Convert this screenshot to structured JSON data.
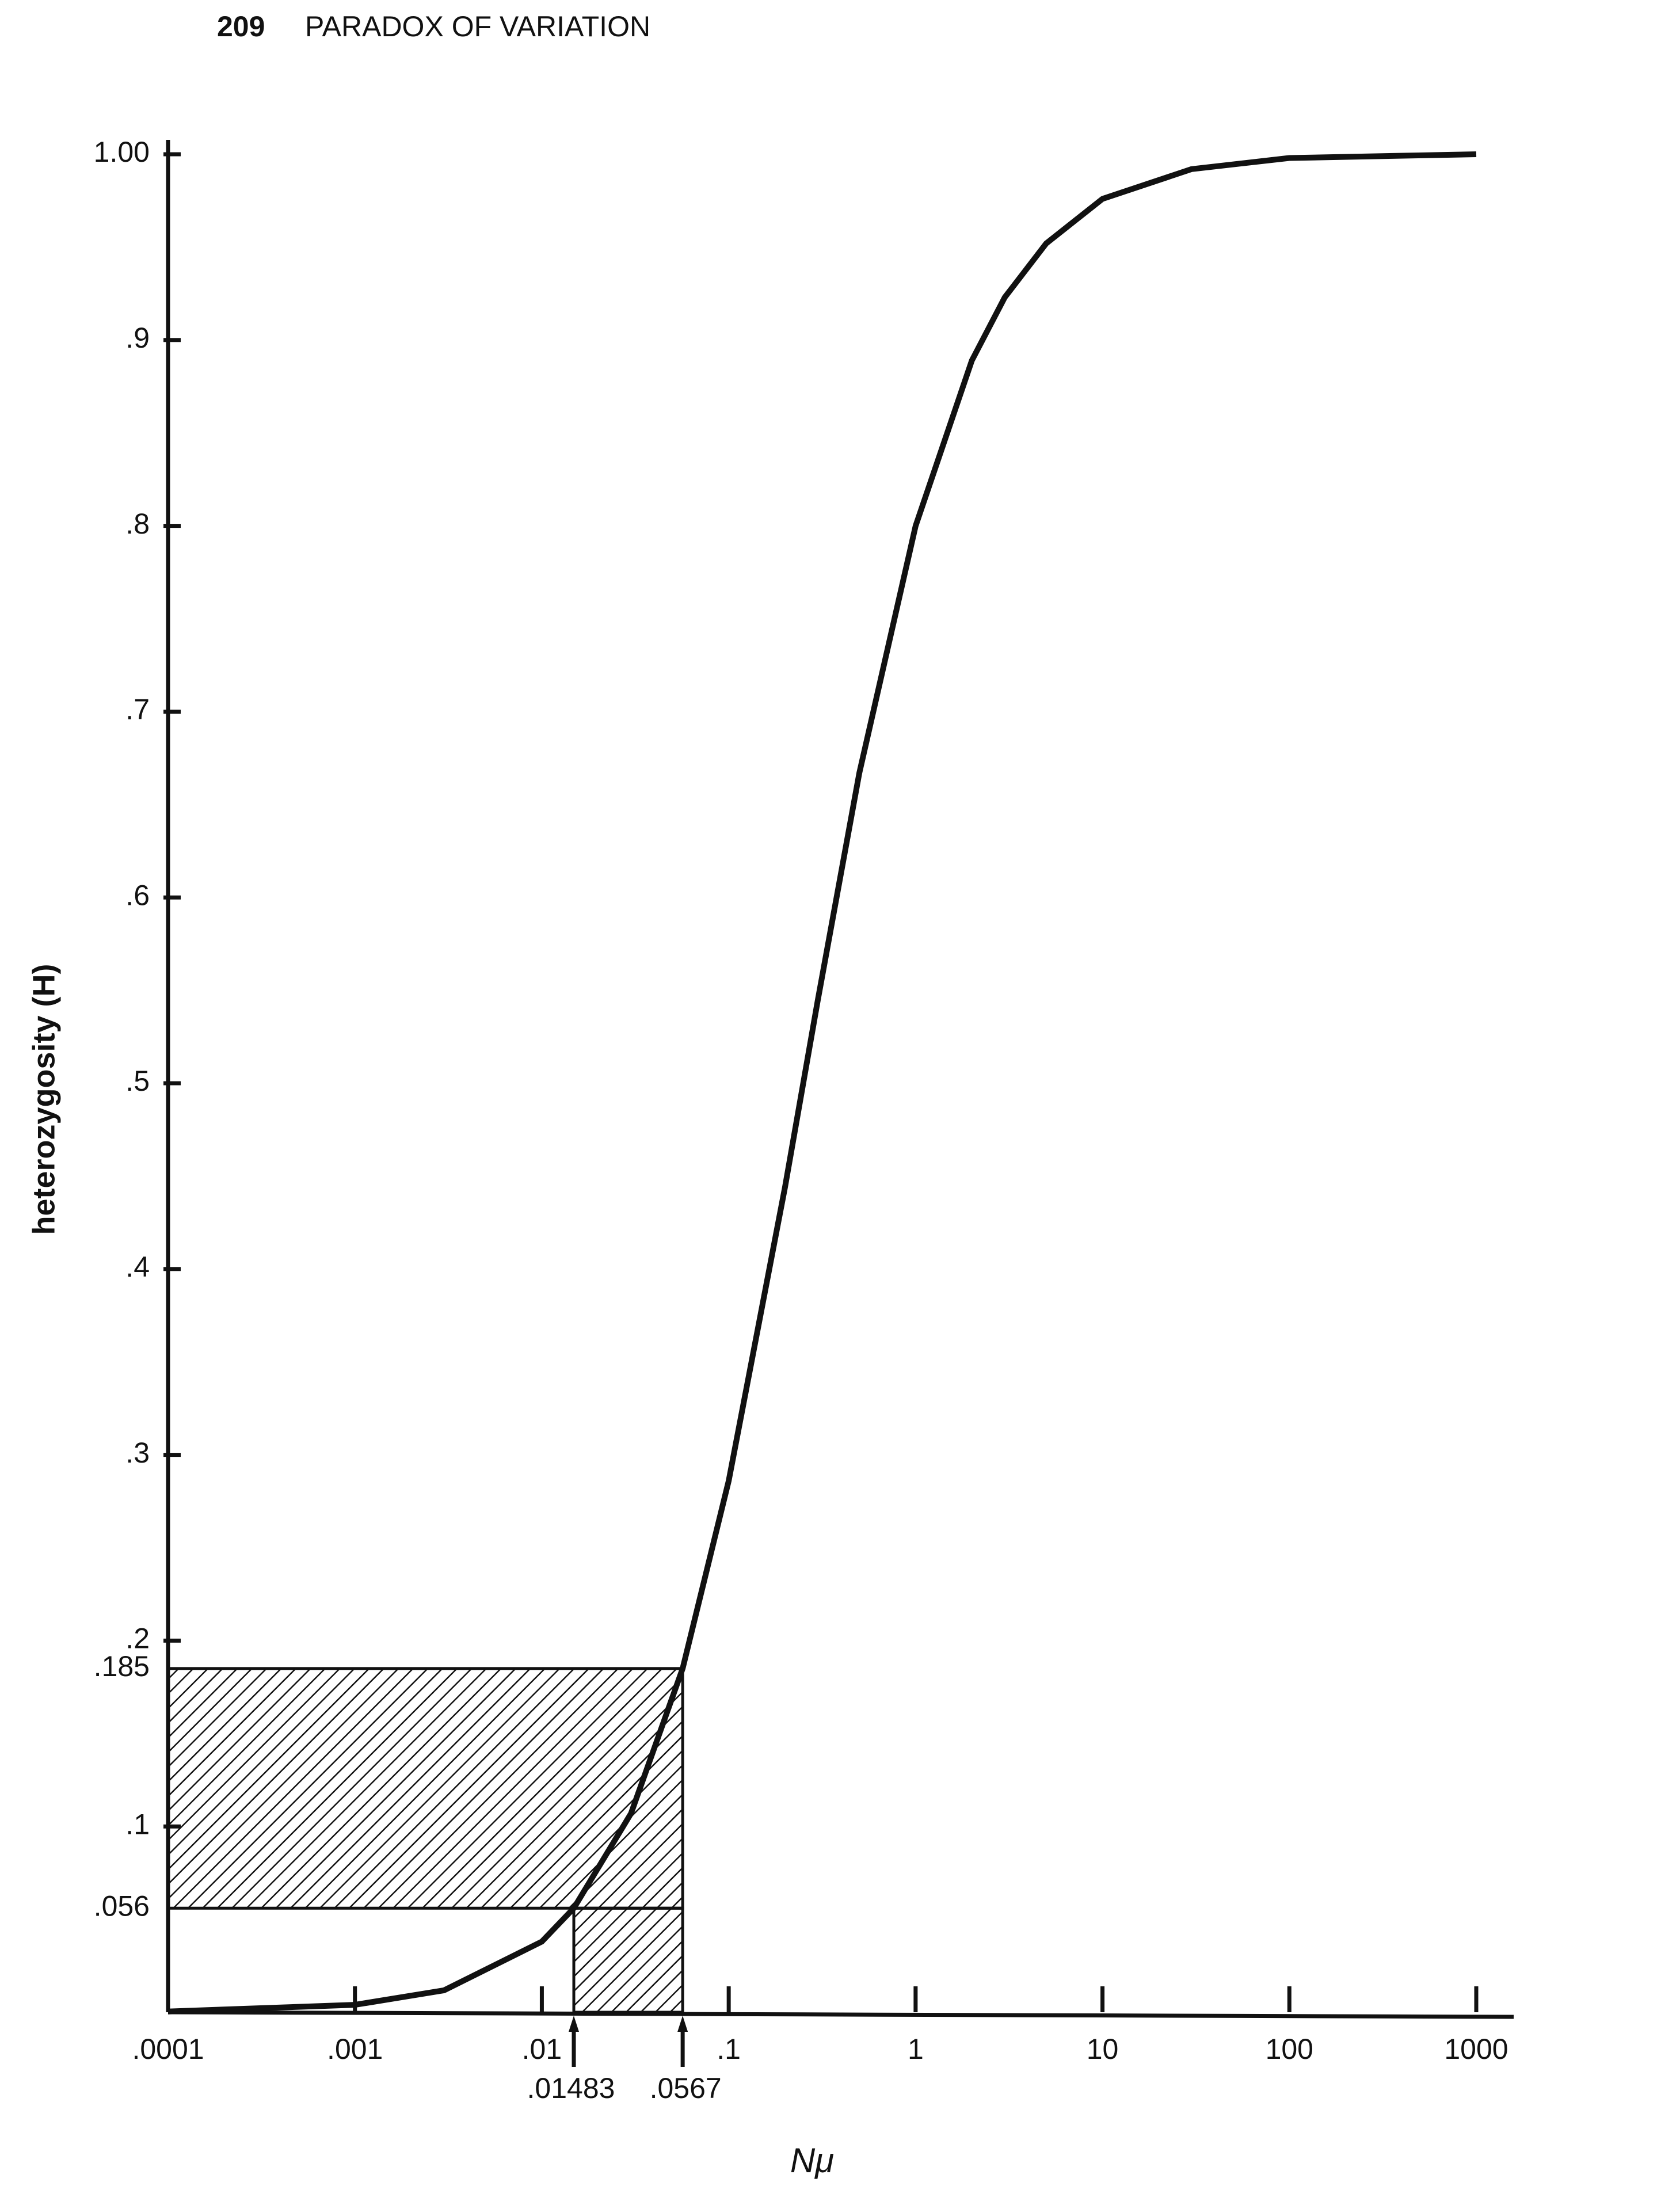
{
  "page_number": "209",
  "running_head": "PARADOX OF VARIATION",
  "chart_data": {
    "type": "line",
    "x_label": "Nμ",
    "y_label": "heterozygosity (H)",
    "x_scale": "log",
    "color": "#111111",
    "xlim": [
      0.0001,
      1000
    ],
    "ylim": [
      0,
      1
    ],
    "xticks": [
      {
        "value": 0.0001,
        "label": ".0001"
      },
      {
        "value": 0.001,
        "label": ".001"
      },
      {
        "value": 0.01,
        "label": ".01"
      },
      {
        "value": 0.1,
        "label": ".1"
      },
      1,
      10,
      100,
      1000
    ],
    "yticks": [
      {
        "value": 0.1,
        "label": ".1"
      },
      {
        "value": 0.2,
        "label": ".2"
      },
      {
        "value": 0.3,
        "label": ".3"
      },
      {
        "value": 0.4,
        "label": ".4"
      },
      {
        "value": 0.5,
        "label": ".5"
      },
      {
        "value": 0.6,
        "label": ".6"
      },
      {
        "value": 0.7,
        "label": ".7"
      },
      {
        "value": 0.8,
        "label": ".8"
      },
      {
        "value": 0.9,
        "label": ".9"
      },
      {
        "value": 1,
        "label": "1.00"
      }
    ],
    "x": [
      0.0001,
      0.001,
      0.003,
      0.01,
      0.01483,
      0.03,
      0.0567,
      0.1,
      0.2,
      0.3,
      0.5,
      1,
      2,
      3,
      5,
      10,
      30,
      100,
      1000
    ],
    "values": [
      0.0004,
      0.004,
      0.0118,
      0.038,
      0.056,
      0.107,
      0.185,
      0.286,
      0.444,
      0.545,
      0.667,
      0.8,
      0.889,
      0.923,
      0.952,
      0.976,
      0.992,
      0.998,
      1.0
    ],
    "highlight_x": [
      {
        "value": 0.01483,
        "label": ".01483"
      },
      {
        "value": 0.0567,
        "label": ".0567"
      }
    ],
    "highlight_y": [
      {
        "value": 0.056,
        "label": ".056"
      },
      {
        "value": 0.185,
        "label": ".185"
      }
    ]
  }
}
